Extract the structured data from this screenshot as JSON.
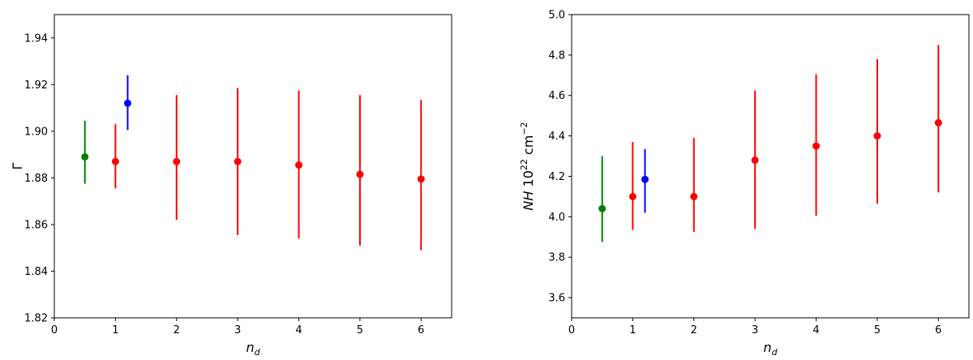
{
  "chart_data": [
    {
      "type": "scatter",
      "title": "",
      "xlabel": "n_d",
      "ylabel": "Γ",
      "xlim": [
        0,
        6.5
      ],
      "ylim": [
        1.82,
        1.95
      ],
      "xticks": [
        0,
        1,
        2,
        3,
        4,
        5,
        6
      ],
      "xtick_labels": [
        "0",
        "1",
        "2",
        "3",
        "4",
        "5",
        "6"
      ],
      "yticks": [
        1.82,
        1.84,
        1.86,
        1.88,
        1.9,
        1.92,
        1.94
      ],
      "ytick_labels": [
        "1.82",
        "1.84",
        "1.86",
        "1.88",
        "1.90",
        "1.92",
        "1.94"
      ],
      "grid": false,
      "series": [
        {
          "color": "#008000",
          "points": [
            {
              "x": 0.5,
              "y": 1.889,
              "lo": 1.8775,
              "hi": 1.9045
            }
          ]
        },
        {
          "color": "#0000ff",
          "points": [
            {
              "x": 1.2,
              "y": 1.912,
              "lo": 1.9005,
              "hi": 1.924
            }
          ]
        },
        {
          "color": "#ff0000",
          "points": [
            {
              "x": 1,
              "y": 1.887,
              "lo": 1.8755,
              "hi": 1.903
            },
            {
              "x": 2,
              "y": 1.887,
              "lo": 1.862,
              "hi": 1.9155
            },
            {
              "x": 3,
              "y": 1.887,
              "lo": 1.8555,
              "hi": 1.9185
            },
            {
              "x": 4,
              "y": 1.8855,
              "lo": 1.854,
              "hi": 1.9175
            },
            {
              "x": 5,
              "y": 1.8815,
              "lo": 1.851,
              "hi": 1.9155
            },
            {
              "x": 6,
              "y": 1.8795,
              "lo": 1.849,
              "hi": 1.9135
            }
          ]
        }
      ]
    },
    {
      "type": "scatter",
      "title": "",
      "xlabel": "n_d",
      "ylabel": "NH 10^22 cm^-2",
      "ylabel_parts": {
        "italic": "NH",
        "base": "10",
        "exp": "22",
        "unit": "cm",
        "unit_exp": "−2"
      },
      "xlim": [
        0,
        6.5
      ],
      "ylim": [
        3.5,
        5.0
      ],
      "xticks": [
        0,
        1,
        2,
        3,
        4,
        5,
        6
      ],
      "xtick_labels": [
        "0",
        "1",
        "2",
        "3",
        "4",
        "5",
        "6"
      ],
      "yticks": [
        3.6,
        3.8,
        4.0,
        4.2,
        4.4,
        4.6,
        4.8,
        5.0
      ],
      "ytick_labels": [
        "3.6",
        "3.8",
        "4.0",
        "4.2",
        "4.4",
        "4.6",
        "4.8",
        "5.0"
      ],
      "grid": false,
      "series": [
        {
          "color": "#008000",
          "points": [
            {
              "x": 0.5,
              "y": 4.04,
              "lo": 3.875,
              "hi": 4.3
            }
          ]
        },
        {
          "color": "#0000ff",
          "points": [
            {
              "x": 1.2,
              "y": 4.185,
              "lo": 4.02,
              "hi": 4.335
            }
          ]
        },
        {
          "color": "#ff0000",
          "points": [
            {
              "x": 1,
              "y": 4.1,
              "lo": 3.935,
              "hi": 4.37
            },
            {
              "x": 2,
              "y": 4.1,
              "lo": 3.925,
              "hi": 4.39
            },
            {
              "x": 3,
              "y": 4.28,
              "lo": 3.94,
              "hi": 4.625
            },
            {
              "x": 4,
              "y": 4.35,
              "lo": 4.005,
              "hi": 4.705
            },
            {
              "x": 5,
              "y": 4.4,
              "lo": 4.065,
              "hi": 4.78
            },
            {
              "x": 6,
              "y": 4.465,
              "lo": 4.12,
              "hi": 4.85
            }
          ]
        }
      ]
    }
  ]
}
